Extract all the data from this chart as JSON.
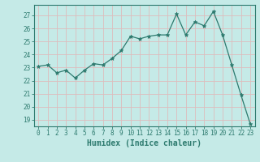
{
  "x": [
    0,
    1,
    2,
    3,
    4,
    5,
    6,
    7,
    8,
    9,
    10,
    11,
    12,
    13,
    14,
    15,
    16,
    17,
    18,
    19,
    20,
    21,
    22,
    23
  ],
  "y": [
    23.1,
    23.2,
    22.6,
    22.8,
    22.2,
    22.8,
    23.3,
    23.2,
    23.7,
    24.3,
    25.4,
    25.2,
    25.4,
    25.5,
    25.5,
    27.1,
    25.5,
    26.5,
    26.2,
    27.3,
    25.5,
    23.2,
    20.9,
    18.7
  ],
  "line_color": "#2d7a6e",
  "marker": "*",
  "marker_size": 3.5,
  "bg_color": "#c5eae7",
  "grid_color": "#ddbcbc",
  "xlabel": "Humidex (Indice chaleur)",
  "ylim": [
    18.5,
    27.8
  ],
  "yticks": [
    19,
    20,
    21,
    22,
    23,
    24,
    25,
    26,
    27
  ],
  "xlim": [
    -0.5,
    23.5
  ],
  "xticks": [
    0,
    1,
    2,
    3,
    4,
    5,
    6,
    7,
    8,
    9,
    10,
    11,
    12,
    13,
    14,
    15,
    16,
    17,
    18,
    19,
    20,
    21,
    22,
    23
  ],
  "tick_color": "#2d7a6e",
  "label_color": "#2d7a6e",
  "tick_fontsize": 5.5,
  "xlabel_fontsize": 7
}
